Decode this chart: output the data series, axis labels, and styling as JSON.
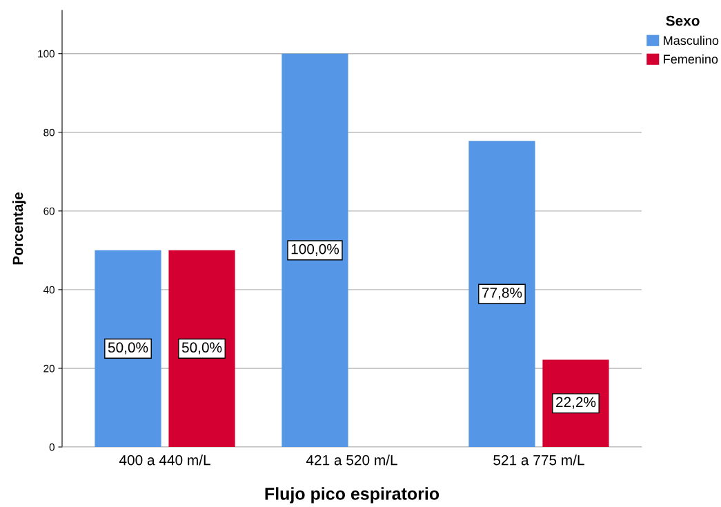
{
  "chart_data": {
    "type": "bar",
    "xlabel": "Flujo pico espiratorio",
    "ylabel": "Porcentaje",
    "legend_title": "Sexo",
    "categories": [
      "400 a 440 m/L",
      "421 a 520 m/L",
      "521 a 775 m/L"
    ],
    "series": [
      {
        "name": "Masculino",
        "color": "#5596e6",
        "values": [
          50.0,
          100.0,
          77.8
        ],
        "value_labels": [
          "50,0%",
          "100,0%",
          "77,8%"
        ]
      },
      {
        "name": "Femenino",
        "color": "#d50032",
        "values": [
          50.0,
          null,
          22.2
        ],
        "value_labels": [
          "50,0%",
          null,
          "22,2%"
        ]
      }
    ],
    "ylim": [
      0,
      111
    ],
    "yticks": [
      0,
      20,
      40,
      60,
      80,
      100
    ],
    "grid": "y",
    "legend": "top right"
  }
}
